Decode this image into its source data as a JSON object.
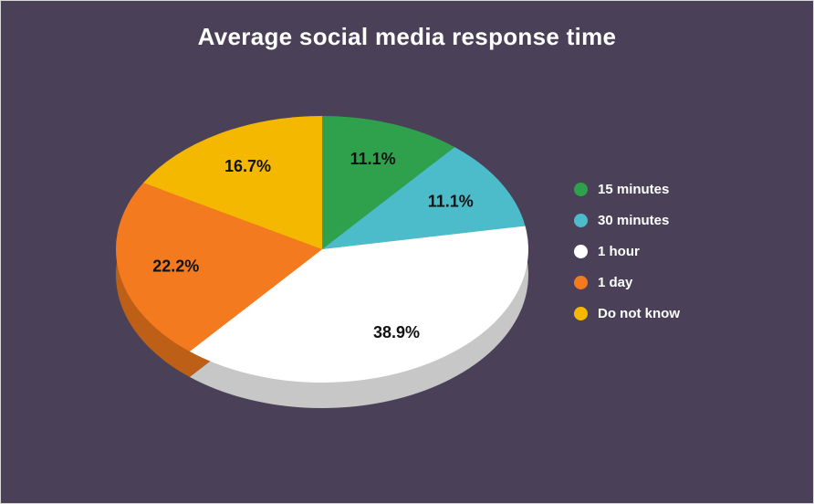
{
  "page": {
    "background": "#4a4158",
    "title_color": "#ffffff"
  },
  "chart_data": {
    "type": "pie",
    "style": "3d",
    "title": "Average social media response time",
    "start_angle_deg": 0,
    "direction": "clockwise",
    "legend_position": "right",
    "label_color": "#111111",
    "legend_text_color": "#ffffff",
    "segments": [
      {
        "label": "15 minutes",
        "value": 11.1,
        "pct_label": "11.1%",
        "color": "#2fa14c"
      },
      {
        "label": "30 minutes",
        "value": 11.1,
        "pct_label": "11.1%",
        "color": "#4cbccb"
      },
      {
        "label": "1 hour",
        "value": 38.9,
        "pct_label": "38.9%",
        "color": "#ffffff"
      },
      {
        "label": "1 day",
        "value": 22.2,
        "pct_label": "22.2%",
        "color": "#f47a1f"
      },
      {
        "label": "Do not know",
        "value": 16.7,
        "pct_label": "16.7%",
        "color": "#f4b800"
      }
    ]
  }
}
